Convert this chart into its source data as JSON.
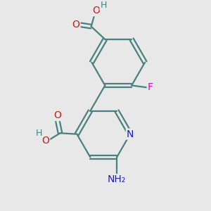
{
  "background_color": "#e8e8e8",
  "bond_color": "#4a8080",
  "bond_width": 1.6,
  "atom_colors": {
    "N": "#1a1acc",
    "O": "#cc1a1a",
    "F": "#cc10cc",
    "H": "#4a8080",
    "C": "#000000"
  }
}
